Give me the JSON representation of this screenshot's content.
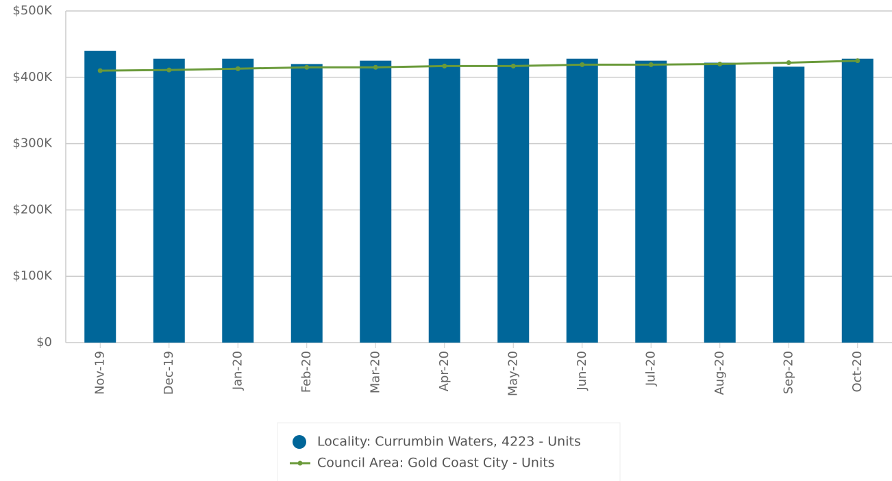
{
  "chart_data": {
    "type": "bar-line",
    "categories": [
      "Nov-19",
      "Dec-19",
      "Jan-20",
      "Feb-20",
      "Mar-20",
      "Apr-20",
      "May-20",
      "Jun-20",
      "Jul-20",
      "Aug-20",
      "Sep-20",
      "Oct-20"
    ],
    "series": [
      {
        "name": "Locality: Currumbin Waters, 4223 - Units",
        "type": "bar",
        "color": "#006699",
        "values": [
          440000,
          428000,
          428000,
          420000,
          425000,
          428000,
          428000,
          428000,
          425000,
          422000,
          416000,
          428000
        ]
      },
      {
        "name": "Council Area: Gold Coast City - Units",
        "type": "line",
        "color": "#6a9a3a",
        "values": [
          410000,
          411000,
          413000,
          415000,
          415000,
          417000,
          417000,
          419000,
          419000,
          420000,
          422000,
          425000
        ]
      }
    ],
    "ylim": [
      0,
      500000
    ],
    "yticks": [
      {
        "value": 0,
        "label": "$0"
      },
      {
        "value": 100000,
        "label": "$100K"
      },
      {
        "value": 200000,
        "label": "$200K"
      },
      {
        "value": 300000,
        "label": "$300K"
      },
      {
        "value": 400000,
        "label": "$400K"
      },
      {
        "value": 500000,
        "label": "$500K"
      }
    ],
    "grid": true
  }
}
